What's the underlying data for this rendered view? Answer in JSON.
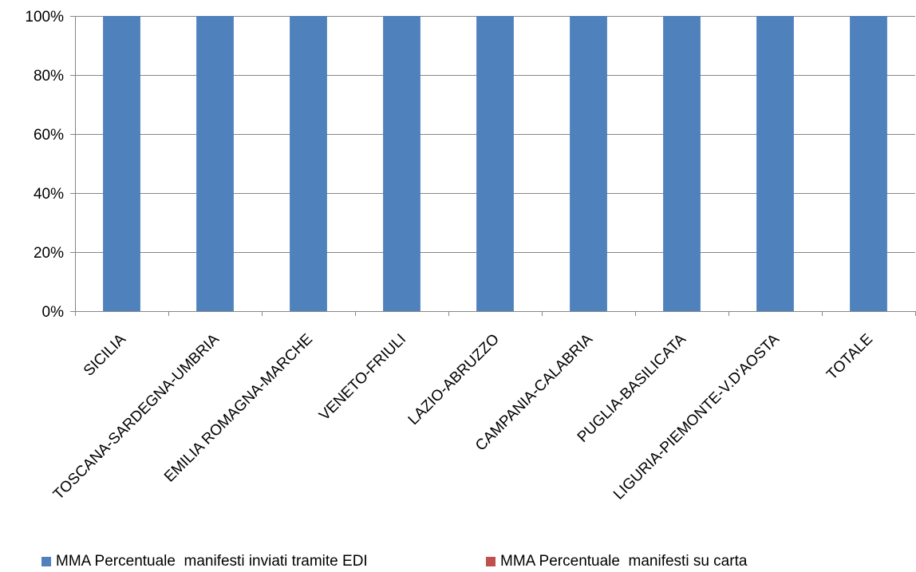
{
  "chart_data": {
    "type": "bar",
    "stacked": true,
    "percent_stacked": true,
    "title": "",
    "xlabel": "",
    "ylabel": "",
    "ylim": [
      0,
      100
    ],
    "y_ticks": [
      "0%",
      "20%",
      "40%",
      "60%",
      "80%",
      "100%"
    ],
    "y_tick_values": [
      0,
      20,
      40,
      60,
      80,
      100
    ],
    "grid": true,
    "legend_position": "bottom",
    "categories": [
      "SICILIA",
      "TOSCANA-SARDEGNA-UMBRIA",
      "EMILIA ROMAGNA-MARCHE",
      "VENETO-FRIULI",
      "LAZIO-ABRUZZO",
      "CAMPANIA-CALABRIA",
      "PUGLIA-BASILICATA",
      "LIGURIA-PIEMONTE-V.D'AOSTA",
      "TOTALE"
    ],
    "series": [
      {
        "name": "MMA Percentuale  manifesti inviati tramite EDI",
        "color": "#4F81BD",
        "values": [
          100,
          100,
          100,
          100,
          100,
          100,
          100,
          100,
          100
        ]
      },
      {
        "name": "MMA Percentuale  manifesti su carta",
        "color": "#C0504D",
        "values": [
          0,
          0,
          0,
          0,
          0,
          0,
          0,
          0,
          0
        ]
      }
    ]
  }
}
